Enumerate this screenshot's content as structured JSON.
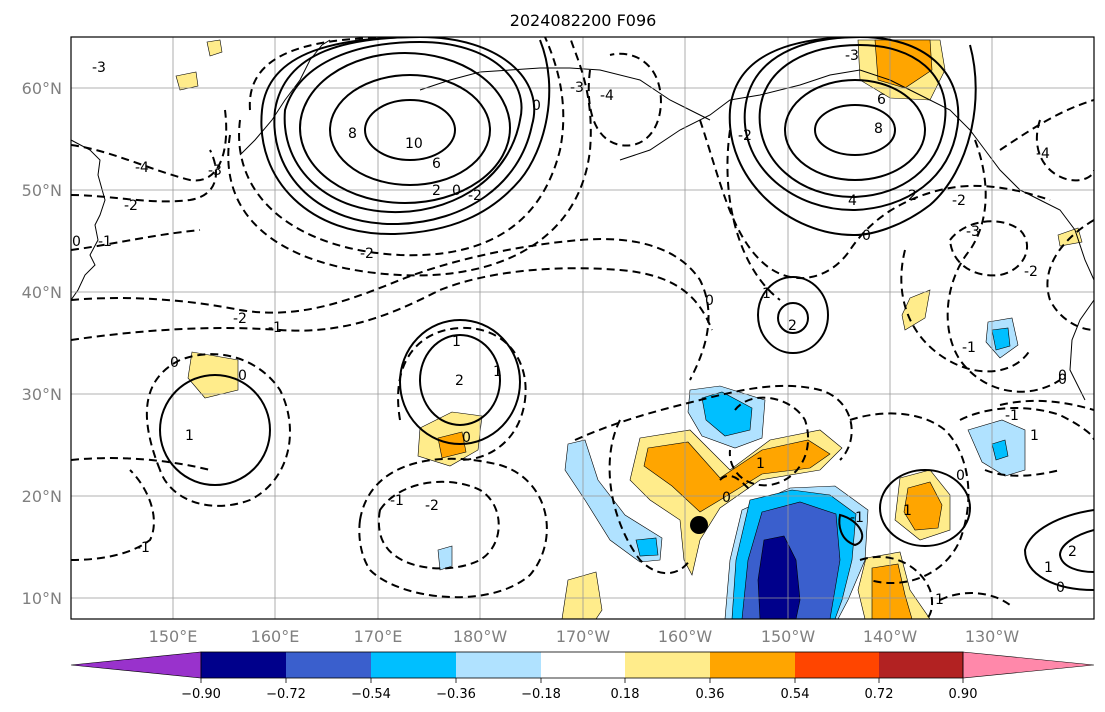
{
  "title": "2024082200 F096",
  "map": {
    "lat_ticks": [
      "60°N",
      "50°N",
      "40°N",
      "30°N",
      "20°N",
      "10°N"
    ],
    "lon_ticks": [
      "150°E",
      "160°E",
      "170°E",
      "180°W",
      "170°W",
      "160°W",
      "150°W",
      "140°W",
      "130°W"
    ],
    "lon_range": [
      140,
      240
    ],
    "lat_range": [
      8,
      65
    ],
    "marker_color": "#000000",
    "contour_color": "#000000",
    "grid": true
  },
  "contour_labels": [
    {
      "text": "-3"
    },
    {
      "text": "-4"
    },
    {
      "text": "-3"
    },
    {
      "text": "-2"
    },
    {
      "text": "0"
    },
    {
      "text": "-1"
    },
    {
      "text": "-2"
    },
    {
      "text": "-1"
    },
    {
      "text": "0"
    },
    {
      "text": "1"
    },
    {
      "text": "10"
    },
    {
      "text": "8"
    },
    {
      "text": "6"
    },
    {
      "text": "2"
    },
    {
      "text": "0"
    },
    {
      "text": "-2"
    },
    {
      "text": "-2"
    },
    {
      "text": "-4"
    },
    {
      "text": "-3"
    },
    {
      "text": "0"
    },
    {
      "text": "-3"
    },
    {
      "text": "-2"
    },
    {
      "text": "8"
    },
    {
      "text": "6"
    },
    {
      "text": "4"
    },
    {
      "text": "2"
    },
    {
      "text": "0"
    },
    {
      "text": "-2"
    },
    {
      "text": "-4"
    },
    {
      "text": "-3"
    },
    {
      "text": "-2"
    },
    {
      "text": "-1"
    },
    {
      "text": "0"
    },
    {
      "text": "1"
    },
    {
      "text": "2"
    },
    {
      "text": "1"
    },
    {
      "text": "2"
    },
    {
      "text": "0"
    },
    {
      "text": "-1"
    },
    {
      "text": "-2"
    },
    {
      "text": "-1"
    },
    {
      "text": "0"
    },
    {
      "text": "1"
    },
    {
      "text": "0"
    },
    {
      "text": "1"
    },
    {
      "text": "-1"
    },
    {
      "text": "0"
    },
    {
      "text": "1"
    },
    {
      "text": "1"
    },
    {
      "text": "-1"
    },
    {
      "text": "0"
    },
    {
      "text": "1"
    },
    {
      "text": "2"
    },
    {
      "text": "0"
    },
    {
      "text": "1"
    },
    {
      "text": "0"
    }
  ],
  "colorbar": {
    "ticks": [
      "−0.90",
      "−0.72",
      "−0.54",
      "−0.36",
      "−0.18",
      "0.18",
      "0.36",
      "0.54",
      "0.72",
      "0.90"
    ],
    "colors": [
      "#9932cc",
      "#00008b",
      "#3a5fcd",
      "#00bfff",
      "#b0e2ff",
      "#ffffff",
      "#ffec8b",
      "#ffa500",
      "#ff4500",
      "#b22222",
      "#ff88aa"
    ]
  }
}
